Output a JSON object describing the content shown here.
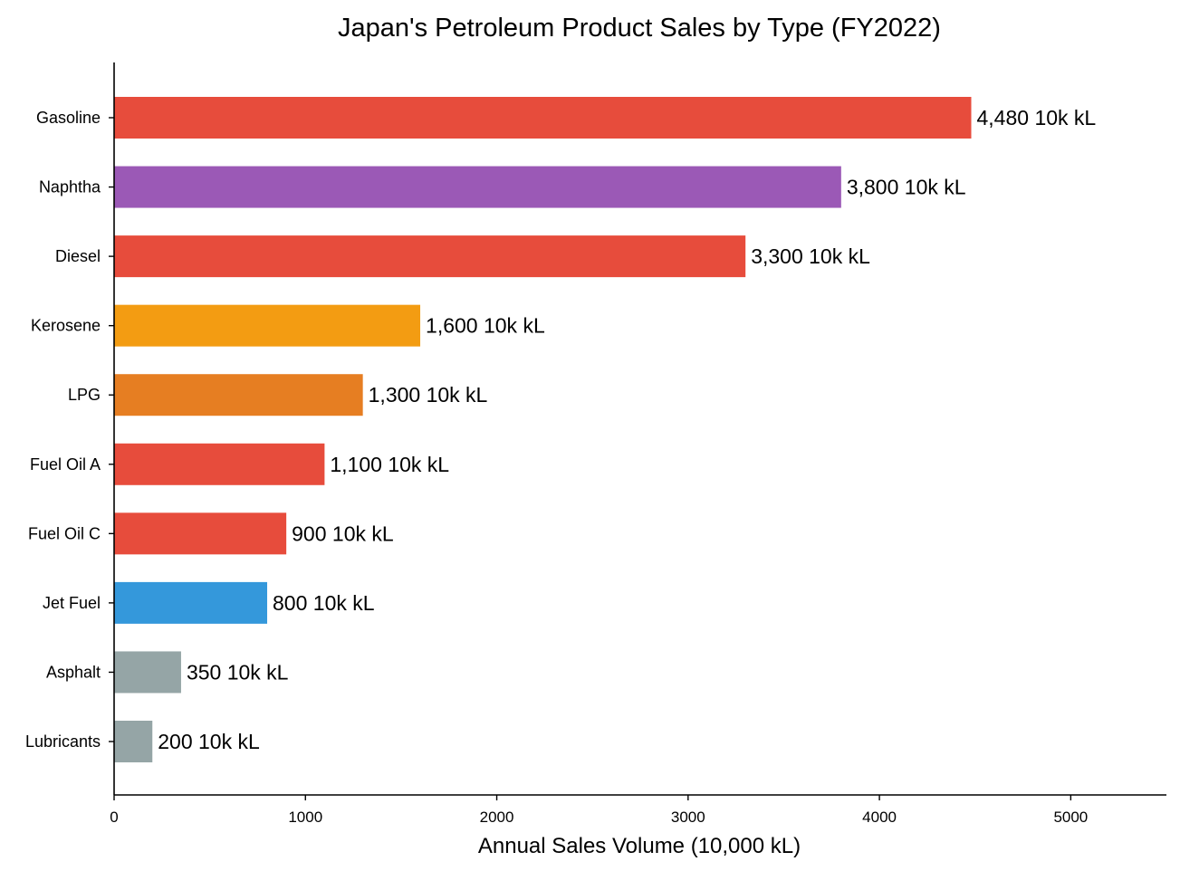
{
  "chart_data": {
    "type": "bar",
    "orientation": "horizontal",
    "title": "Japan's Petroleum Product Sales by Type (FY2022)",
    "xlabel": "Annual Sales Volume (10,000 kL)",
    "ylabel": "",
    "xlim": [
      0,
      5500
    ],
    "xticks": [
      0,
      1000,
      2000,
      3000,
      4000,
      5000
    ],
    "grid": false,
    "legend": "none",
    "value_label_unit": "10k kL",
    "categories": [
      "Gasoline",
      "Naphtha",
      "Diesel",
      "Kerosene",
      "LPG",
      "Fuel Oil A",
      "Fuel Oil C",
      "Jet Fuel",
      "Asphalt",
      "Lubricants"
    ],
    "values": [
      4480,
      3800,
      3300,
      1600,
      1300,
      1100,
      900,
      800,
      350,
      200
    ],
    "value_labels": [
      "4,480 10k kL",
      "3,800 10k kL",
      "3,300 10k kL",
      "1,600 10k kL",
      "1,300 10k kL",
      "1,100 10k kL",
      "900 10k kL",
      "800 10k kL",
      "350 10k kL",
      "200 10k kL"
    ],
    "colors": [
      "#e74c3c",
      "#9b59b6",
      "#e74c3c",
      "#f39c12",
      "#e67e22",
      "#e74c3c",
      "#e74c3c",
      "#3498db",
      "#95a5a6",
      "#95a5a6"
    ]
  }
}
